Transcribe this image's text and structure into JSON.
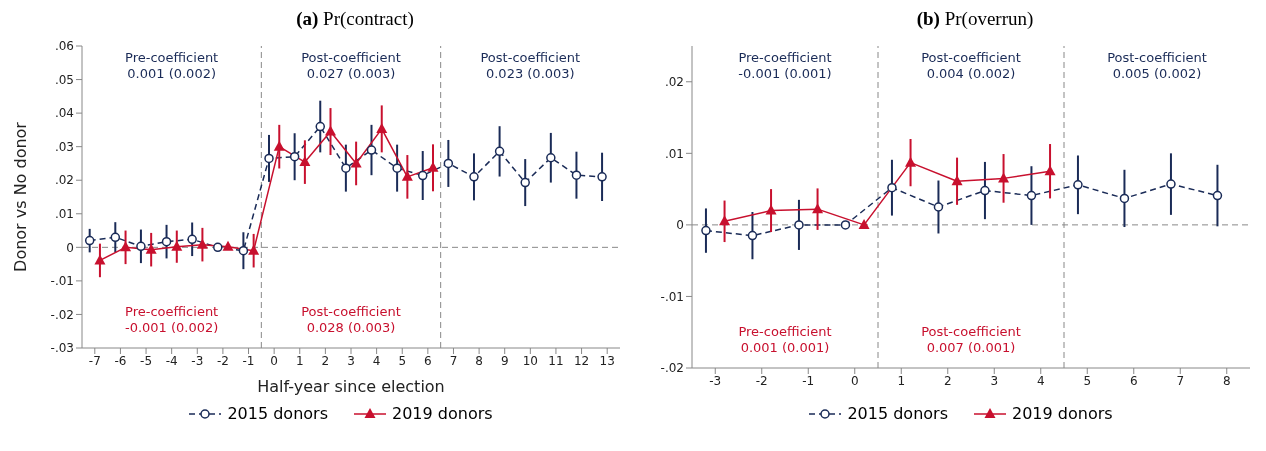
{
  "chart_data": [
    {
      "type": "line",
      "title": "(a) Pr(contract)",
      "xlabel": "Half-year since election",
      "ylabel": "Donor vs No donor",
      "xlim": [
        -7.5,
        13.5
      ],
      "xticks": [
        -7,
        -6,
        -5,
        -4,
        -3,
        -2,
        -1,
        0,
        1,
        2,
        3,
        4,
        5,
        6,
        7,
        8,
        9,
        10,
        11,
        12,
        13
      ],
      "ylim": [
        -0.03,
        0.06
      ],
      "yticks": [
        {
          "value": -0.03,
          "label": "-.03"
        },
        {
          "value": -0.02,
          "label": "-.02"
        },
        {
          "value": -0.01,
          "label": "-.01"
        },
        0,
        {
          "value": 0.01,
          "label": ".01"
        },
        {
          "value": 0.02,
          "label": ".02"
        },
        {
          "value": 0.03,
          "label": ".03"
        },
        {
          "value": 0.04,
          "label": ".04"
        },
        {
          "value": 0.05,
          "label": ".05"
        },
        {
          "value": 0.06,
          "label": ".06"
        }
      ],
      "series": [
        {
          "name": "2015 donors",
          "color": "#1a2b57",
          "marker": "circle",
          "line_style": "dashed",
          "x": [
            -7.2,
            -6.2,
            -5.2,
            -4.2,
            -3.2,
            -2.2,
            -1.2,
            -0.2,
            0.8,
            1.8,
            2.8,
            3.8,
            4.8,
            5.8,
            6.8,
            7.8,
            8.8,
            9.8,
            10.8,
            11.8,
            12.8
          ],
          "values": [
            0.002,
            0.003,
            0.0003,
            0.0017,
            0.0024,
            0,
            -0.001,
            0.0265,
            0.027,
            0.036,
            0.0236,
            0.029,
            0.0236,
            0.0214,
            0.025,
            0.021,
            0.0286,
            0.0193,
            0.0267,
            0.0215,
            0.021
          ],
          "errors": [
            0.0035,
            0.0045,
            0.005,
            0.005,
            0.005,
            null,
            0.0055,
            0.007,
            0.007,
            0.0077,
            0.007,
            0.0075,
            0.007,
            0.0073,
            0.007,
            0.007,
            0.0075,
            0.007,
            0.0074,
            0.007,
            0.0072
          ]
        },
        {
          "name": "2019 donors",
          "color": "#c8102e",
          "marker": "triangle",
          "line_style": "solid",
          "x": [
            -6.8,
            -5.8,
            -4.8,
            -3.8,
            -2.8,
            -1.8,
            -0.8,
            0.2,
            1.2,
            2.2,
            3.2,
            4.2,
            5.2,
            6.2
          ],
          "values": [
            -0.0039,
            0,
            -0.0007,
            0.0002,
            0.0008,
            0.0002,
            -0.001,
            0.03,
            0.0254,
            0.0345,
            0.025,
            0.0353,
            0.021,
            0.0237
          ],
          "errors": [
            0.005,
            0.005,
            0.005,
            0.0048,
            0.005,
            null,
            0.005,
            0.0065,
            0.0065,
            0.007,
            0.0065,
            0.007,
            0.0065,
            0.007
          ]
        }
      ],
      "ref_lines": [
        {
          "axis": "x",
          "value": -0.5,
          "color": "#888888",
          "line_style": "dashed"
        },
        {
          "axis": "x",
          "value": 6.5,
          "color": "#888888",
          "line_style": "dashed"
        },
        {
          "axis": "y",
          "value": 0,
          "color": "#888888",
          "line_style": "dashed"
        }
      ],
      "annotations": [
        "Pre-coefficient\n0.001 (0.002)",
        "Post-coefficient\n0.027 (0.003)",
        "Post-coefficient\n0.023 (0.003)",
        "Pre-coefficient\n-0.001 (0.002)",
        "Post-coefficient\n0.028 (0.003)"
      ],
      "legend": "bottom",
      "grid": false
    },
    {
      "type": "line",
      "title": "(b) Pr(overrun)",
      "xlim": [
        -3.5,
        8.5
      ],
      "xticks": [
        -3,
        -2,
        -1,
        0,
        1,
        2,
        3,
        4,
        5,
        6,
        7,
        8
      ],
      "ylim": [
        -0.02,
        0.025
      ],
      "yticks": [
        {
          "value": -0.02,
          "label": "-.02"
        },
        {
          "value": -0.01,
          "label": "-.01"
        },
        0,
        {
          "value": 0.01,
          "label": ".01"
        },
        {
          "value": 0.02,
          "label": ".02"
        }
      ],
      "series": [
        {
          "name": "2015 donors",
          "color": "#1a2b57",
          "marker": "circle",
          "line_style": "dashed",
          "x": [
            -3.2,
            -2.2,
            -1.2,
            -0.2,
            0.8,
            1.8,
            2.8,
            3.8,
            4.8,
            5.8,
            6.8,
            7.8
          ],
          "values": [
            -0.0008,
            -0.0015,
            0,
            0,
            0.0052,
            0.0025,
            0.0048,
            0.0041,
            0.0056,
            0.0037,
            0.0057,
            0.0041
          ],
          "errors": [
            0.0031,
            0.0033,
            0.0035,
            null,
            0.0039,
            0.0037,
            0.004,
            0.0041,
            0.0041,
            0.004,
            0.0043,
            0.0043
          ]
        },
        {
          "name": "2019 donors",
          "color": "#c8102e",
          "marker": "triangle",
          "line_style": "solid",
          "x": [
            -2.8,
            -1.8,
            -0.8,
            0.2,
            1.2,
            2.2,
            3.2,
            4.2
          ],
          "values": [
            0.0005,
            0.002,
            0.0022,
            0,
            0.0087,
            0.0061,
            0.0065,
            0.0075
          ],
          "errors": [
            0.0029,
            0.003,
            0.0029,
            null,
            0.0033,
            0.0033,
            0.0034,
            0.0038
          ]
        }
      ],
      "ref_lines": [
        {
          "axis": "x",
          "value": 0.5,
          "color": "#888888",
          "line_style": "dashed"
        },
        {
          "axis": "x",
          "value": 4.5,
          "color": "#888888",
          "line_style": "dashed"
        },
        {
          "axis": "y",
          "value": 0,
          "color": "#888888",
          "line_style": "dashed"
        }
      ],
      "annotations": [
        "Pre-coefficient\n-0.001 (0.001)",
        "Post-coefficient\n0.004 (0.002)",
        "Post-coefficient\n0.005 (0.002)",
        "Pre-coefficient\n0.001 (0.001)",
        "Post-coefficient\n0.007 (0.001)"
      ],
      "legend": "bottom",
      "grid": false
    }
  ]
}
